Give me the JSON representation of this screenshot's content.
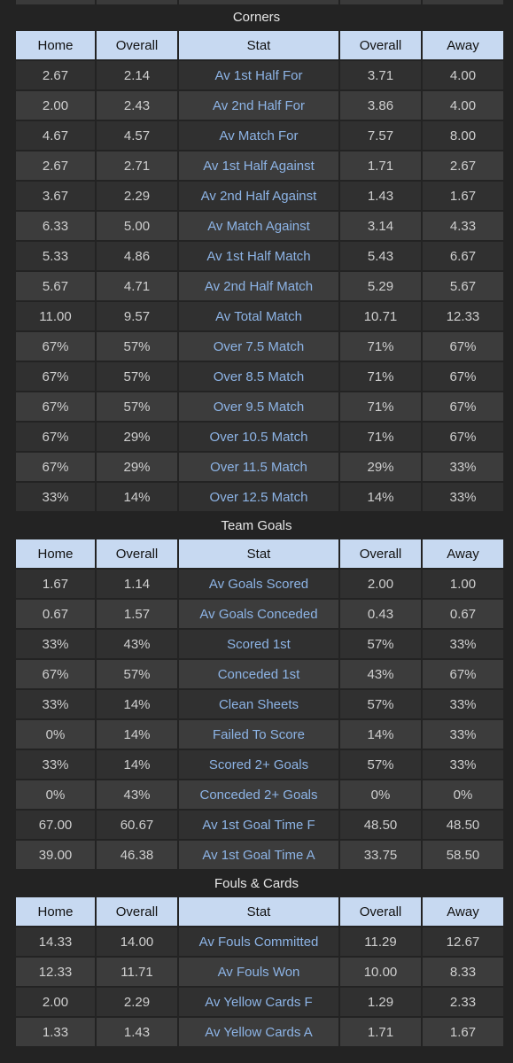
{
  "headers": {
    "home": "Home",
    "overall": "Overall",
    "stat": "Stat",
    "overall2": "Overall",
    "away": "Away"
  },
  "sections": [
    {
      "title": "Corners",
      "rows": [
        [
          "2.67",
          "2.14",
          "Av 1st Half For",
          "3.71",
          "4.00"
        ],
        [
          "2.00",
          "2.43",
          "Av 2nd Half For",
          "3.86",
          "4.00"
        ],
        [
          "4.67",
          "4.57",
          "Av Match For",
          "7.57",
          "8.00"
        ],
        [
          "2.67",
          "2.71",
          "Av 1st Half Against",
          "1.71",
          "2.67"
        ],
        [
          "3.67",
          "2.29",
          "Av 2nd Half Against",
          "1.43",
          "1.67"
        ],
        [
          "6.33",
          "5.00",
          "Av Match Against",
          "3.14",
          "4.33"
        ],
        [
          "5.33",
          "4.86",
          "Av 1st Half Match",
          "5.43",
          "6.67"
        ],
        [
          "5.67",
          "4.71",
          "Av 2nd Half Match",
          "5.29",
          "5.67"
        ],
        [
          "11.00",
          "9.57",
          "Av Total Match",
          "10.71",
          "12.33"
        ],
        [
          "67%",
          "57%",
          "Over 7.5 Match",
          "71%",
          "67%"
        ],
        [
          "67%",
          "57%",
          "Over 8.5 Match",
          "71%",
          "67%"
        ],
        [
          "67%",
          "57%",
          "Over 9.5 Match",
          "71%",
          "67%"
        ],
        [
          "67%",
          "29%",
          "Over 10.5 Match",
          "71%",
          "67%"
        ],
        [
          "67%",
          "29%",
          "Over 11.5 Match",
          "29%",
          "33%"
        ],
        [
          "33%",
          "14%",
          "Over 12.5 Match",
          "14%",
          "33%"
        ]
      ]
    },
    {
      "title": "Team Goals",
      "rows": [
        [
          "1.67",
          "1.14",
          "Av Goals Scored",
          "2.00",
          "1.00"
        ],
        [
          "0.67",
          "1.57",
          "Av Goals Conceded",
          "0.43",
          "0.67"
        ],
        [
          "33%",
          "43%",
          "Scored 1st",
          "57%",
          "33%"
        ],
        [
          "67%",
          "57%",
          "Conceded 1st",
          "43%",
          "67%"
        ],
        [
          "33%",
          "14%",
          "Clean Sheets",
          "57%",
          "33%"
        ],
        [
          "0%",
          "14%",
          "Failed To Score",
          "14%",
          "33%"
        ],
        [
          "33%",
          "14%",
          "Scored 2+ Goals",
          "57%",
          "33%"
        ],
        [
          "0%",
          "43%",
          "Conceded 2+ Goals",
          "0%",
          "0%"
        ],
        [
          "67.00",
          "60.67",
          "Av 1st Goal Time F",
          "48.50",
          "48.50"
        ],
        [
          "39.00",
          "46.38",
          "Av 1st Goal Time A",
          "33.75",
          "58.50"
        ]
      ]
    },
    {
      "title": "Fouls & Cards",
      "rows": [
        [
          "14.33",
          "14.00",
          "Av Fouls Committed",
          "11.29",
          "12.67"
        ],
        [
          "12.33",
          "11.71",
          "Av Fouls Won",
          "10.00",
          "8.33"
        ],
        [
          "2.00",
          "2.29",
          "Av Yellow Cards F",
          "1.29",
          "2.33"
        ],
        [
          "1.33",
          "1.43",
          "Av Yellow Cards A",
          "1.71",
          "1.67"
        ]
      ]
    }
  ]
}
